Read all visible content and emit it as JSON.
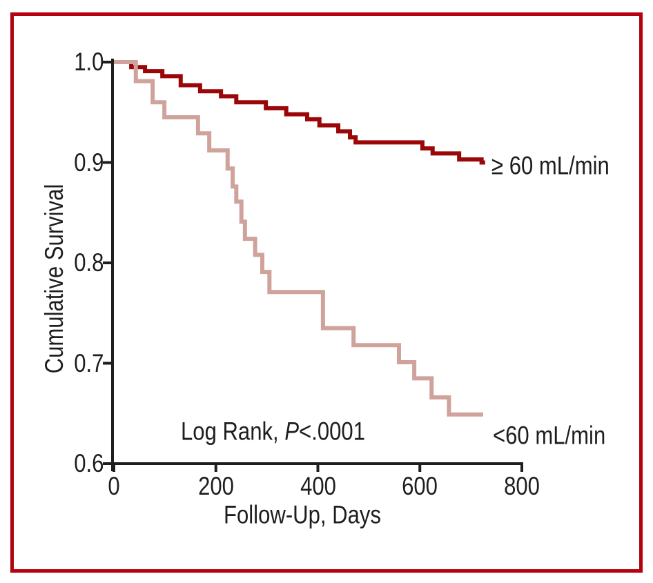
{
  "figure": {
    "type_note": "Kaplan-Meier cumulative survival plot",
    "border_color": "#b2030f",
    "background_color": "#ffffff",
    "axis_color": "#1e1e1e",
    "text_color": "#1e1e1e"
  },
  "chart_data": {
    "type": "line",
    "subtype": "kaplan-meier-step",
    "title": "",
    "xlabel": "Follow-Up, Days",
    "ylabel": "Cumulative Survival",
    "xlim": [
      0,
      800
    ],
    "ylim": [
      0.6,
      1.0
    ],
    "grid": false,
    "legend_position": "labels-at-curve-ends",
    "x_ticks": [
      0,
      200,
      400,
      600,
      800
    ],
    "x_tick_labels": [
      "0",
      "200",
      "400",
      "600",
      "800"
    ],
    "y_ticks": [
      1.0,
      0.9,
      0.8,
      0.7,
      0.6
    ],
    "y_tick_labels": [
      "1.0",
      "0.9",
      "0.8",
      "0.7",
      "0.6"
    ],
    "annotation": {
      "prefix": "Log Rank, ",
      "italic": "P",
      "suffix": "<.0001"
    },
    "series": [
      {
        "id": "ge60",
        "name": "≥ 60 mL/min",
        "color": "#9b0608",
        "end_day": 728,
        "points": [
          [
            0,
            1.0
          ],
          [
            34,
            0.995
          ],
          [
            61,
            0.991
          ],
          [
            95,
            0.986
          ],
          [
            131,
            0.977
          ],
          [
            169,
            0.971
          ],
          [
            210,
            0.966
          ],
          [
            240,
            0.96
          ],
          [
            298,
            0.954
          ],
          [
            338,
            0.948
          ],
          [
            379,
            0.943
          ],
          [
            403,
            0.937
          ],
          [
            440,
            0.931
          ],
          [
            463,
            0.925
          ],
          [
            474,
            0.92
          ],
          [
            605,
            0.914
          ],
          [
            625,
            0.909
          ],
          [
            677,
            0.903
          ],
          [
            721,
            0.9
          ]
        ]
      },
      {
        "id": "lt60",
        "name": "<60 mL/min",
        "color": "#cfa39b",
        "end_day": 724,
        "points": [
          [
            0,
            1.0
          ],
          [
            43,
            0.981
          ],
          [
            76,
            0.96
          ],
          [
            99,
            0.945
          ],
          [
            165,
            0.929
          ],
          [
            187,
            0.912
          ],
          [
            223,
            0.894
          ],
          [
            233,
            0.876
          ],
          [
            240,
            0.861
          ],
          [
            250,
            0.841
          ],
          [
            257,
            0.824
          ],
          [
            277,
            0.808
          ],
          [
            291,
            0.791
          ],
          [
            305,
            0.771
          ],
          [
            410,
            0.735
          ],
          [
            470,
            0.718
          ],
          [
            559,
            0.701
          ],
          [
            589,
            0.685
          ],
          [
            623,
            0.666
          ],
          [
            657,
            0.649
          ]
        ]
      }
    ]
  }
}
